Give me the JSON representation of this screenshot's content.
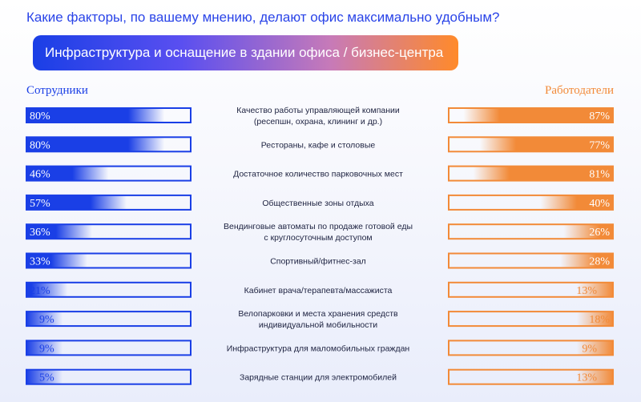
{
  "header": {
    "question": "Какие факторы, по вашему мнению, делают офис максимально удобным?",
    "banner": "Инфраструктура и оснащение в здании офиса / бизнес-центра"
  },
  "chart_data": {
    "type": "bar",
    "title": "Инфраструктура и оснащение в здании офиса / бизнес-центра",
    "xlim": [
      0,
      100
    ],
    "value_format": "percent",
    "colors": {
      "left": "#1a3fe6",
      "right": "#f28a38"
    },
    "categories": [
      [
        "Качество работы управляющей компании",
        "(ресепшн, охрана, клининг и др.)"
      ],
      [
        "Рестораны, кафе и столовые"
      ],
      [
        "Достаточное количество парковочных мест"
      ],
      [
        "Общественные зоны отдыха"
      ],
      [
        "Вендинговые автоматы по продаже готовой еды",
        "с круглосуточным доступом"
      ],
      [
        "Спортивный/фитнес-зал"
      ],
      [
        "Кабинет врача/терапевта/массажиста"
      ],
      [
        "Велопарковки и места хранения средств",
        "индивидуальной мобильности"
      ],
      [
        "Инфраструктура для маломобильных граждан"
      ],
      [
        "Зарядные станции для электромобилей"
      ]
    ],
    "series": [
      {
        "name": "Сотрудники",
        "values": [
          80,
          80,
          46,
          57,
          36,
          33,
          21,
          9,
          9,
          5
        ]
      },
      {
        "name": "Работодатели",
        "values": [
          87,
          77,
          81,
          40,
          26,
          28,
          13,
          18,
          9,
          13
        ]
      }
    ]
  }
}
